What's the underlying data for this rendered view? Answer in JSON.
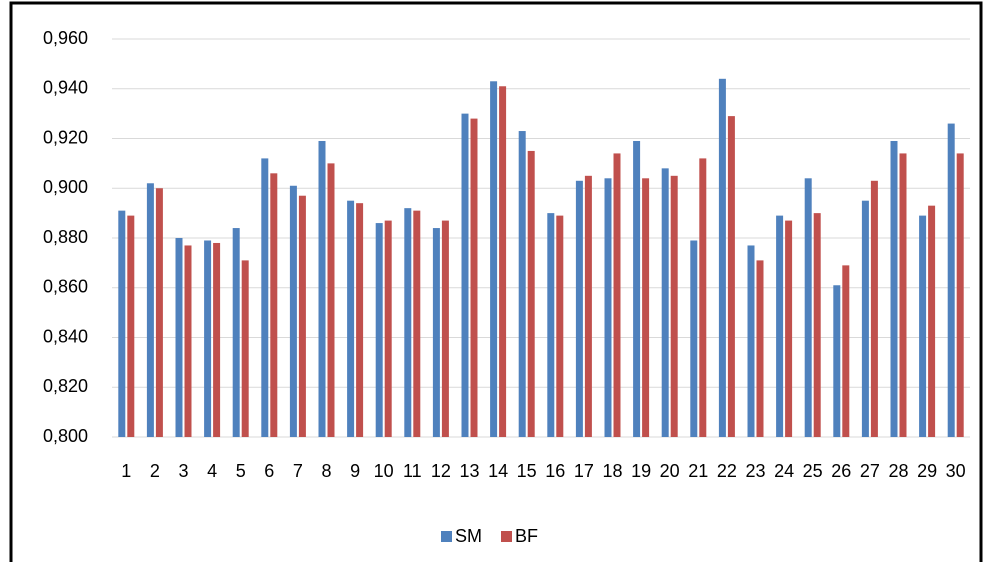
{
  "chart_data": {
    "type": "bar",
    "categories": [
      "1",
      "2",
      "3",
      "4",
      "5",
      "6",
      "7",
      "8",
      "9",
      "10",
      "11",
      "12",
      "13",
      "14",
      "15",
      "16",
      "17",
      "18",
      "19",
      "20",
      "21",
      "22",
      "23",
      "24",
      "25",
      "26",
      "27",
      "28",
      "29",
      "30"
    ],
    "series": [
      {
        "name": "SM",
        "color": "#4f81bd",
        "values": [
          0.891,
          0.902,
          0.88,
          0.879,
          0.884,
          0.912,
          0.901,
          0.919,
          0.895,
          0.886,
          0.892,
          0.884,
          0.93,
          0.943,
          0.923,
          0.89,
          0.903,
          0.904,
          0.919,
          0.908,
          0.879,
          0.944,
          0.877,
          0.889,
          0.904,
          0.861,
          0.895,
          0.919,
          0.889,
          0.926
        ]
      },
      {
        "name": "BF",
        "color": "#c0504d",
        "values": [
          0.889,
          0.9,
          0.877,
          0.878,
          0.871,
          0.906,
          0.897,
          0.91,
          0.894,
          0.887,
          0.891,
          0.887,
          0.928,
          0.941,
          0.915,
          0.889,
          0.905,
          0.914,
          0.904,
          0.905,
          0.912,
          0.929,
          0.871,
          0.887,
          0.89,
          0.869,
          0.903,
          0.914,
          0.893,
          0.914
        ]
      }
    ],
    "ylim": [
      0.8,
      0.96
    ],
    "yticks": [
      {
        "value": 0.8,
        "label": "0,800"
      },
      {
        "value": 0.82,
        "label": "0,820"
      },
      {
        "value": 0.84,
        "label": "0,840"
      },
      {
        "value": 0.86,
        "label": "0,860"
      },
      {
        "value": 0.88,
        "label": "0,880"
      },
      {
        "value": 0.9,
        "label": "0,900"
      },
      {
        "value": 0.92,
        "label": "0,920"
      },
      {
        "value": 0.94,
        "label": "0,940"
      },
      {
        "value": 0.96,
        "label": "0,960"
      }
    ],
    "grid": true,
    "legend": "bottom"
  }
}
